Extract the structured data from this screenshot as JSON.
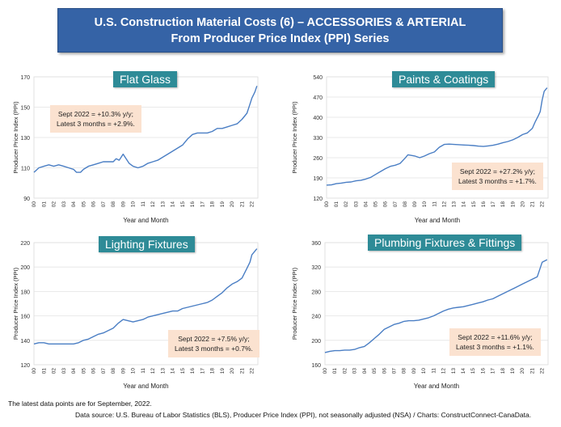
{
  "header": {
    "title_line1": "U.S. Construction Material Costs (6) – ACCESSORIES & ARTERIAL",
    "title_line2": "From Producer Price Index (PPI) Series"
  },
  "footer": {
    "line1": "The latest data points are for September, 2022.",
    "line2": "Data source: U.S. Bureau of Labor Statistics (BLS), Producer Price Index (PPI), not seasonally adjusted (NSA) / Charts: ConstructConnect-CanaData."
  },
  "colors": {
    "line": "#4a7ec4",
    "banner": "#3563a6",
    "panel_title": "#2e8b97",
    "note_bg": "#fbe2d0"
  },
  "chart_data": [
    {
      "type": "line",
      "title": "Flat Glass",
      "xlabel": "Year and Month",
      "ylabel": "Producer Price Index (PPI)",
      "ylim": [
        90,
        170
      ],
      "yticks": [
        90,
        110,
        130,
        150,
        170
      ],
      "x_tick_labels": [
        "00",
        "01",
        "02",
        "03",
        "04",
        "05",
        "06",
        "07",
        "08",
        "09",
        "10",
        "11",
        "12",
        "13",
        "14",
        "15",
        "16",
        "17",
        "18",
        "19",
        "20",
        "21",
        "22"
      ],
      "annotation": [
        "Sept 2022 = +10.3% y/y;",
        "Latest 3 months = +2.9%."
      ],
      "series": [
        {
          "points": [
            [
              0,
              107
            ],
            [
              0.5,
              110
            ],
            [
              1,
              111
            ],
            [
              1.5,
              112
            ],
            [
              2,
              111
            ],
            [
              2.5,
              112
            ],
            [
              3,
              111
            ],
            [
              3.5,
              110
            ],
            [
              4,
              109
            ],
            [
              4.3,
              107
            ],
            [
              4.7,
              107
            ],
            [
              5,
              109
            ],
            [
              5.5,
              111
            ],
            [
              6,
              112
            ],
            [
              6.5,
              113
            ],
            [
              7,
              114
            ],
            [
              7.5,
              114
            ],
            [
              8,
              114
            ],
            [
              8.3,
              116
            ],
            [
              8.6,
              115
            ],
            [
              8.8,
              117
            ],
            [
              9,
              119
            ],
            [
              9.3,
              116
            ],
            [
              9.6,
              113
            ],
            [
              10,
              111
            ],
            [
              10.5,
              110
            ],
            [
              11,
              111
            ],
            [
              11.5,
              113
            ],
            [
              12,
              114
            ],
            [
              12.5,
              115
            ],
            [
              13,
              117
            ],
            [
              13.5,
              119
            ],
            [
              14,
              121
            ],
            [
              14.5,
              123
            ],
            [
              15,
              125
            ],
            [
              15.5,
              129
            ],
            [
              16,
              132
            ],
            [
              16.5,
              133
            ],
            [
              17,
              133
            ],
            [
              17.5,
              133
            ],
            [
              18,
              134
            ],
            [
              18.5,
              136
            ],
            [
              19,
              136
            ],
            [
              19.5,
              137
            ],
            [
              20,
              138
            ],
            [
              20.5,
              139
            ],
            [
              21,
              142
            ],
            [
              21.5,
              146
            ],
            [
              21.8,
              152
            ],
            [
              22,
              156
            ],
            [
              22.3,
              160
            ],
            [
              22.5,
              164
            ]
          ]
        }
      ]
    },
    {
      "type": "line",
      "title": "Paints & Coatings",
      "xlabel": "Year and Month",
      "ylabel": "Producer Price Index (PPI)",
      "ylim": [
        120,
        540
      ],
      "yticks": [
        120,
        190,
        260,
        330,
        400,
        470,
        540
      ],
      "x_tick_labels": [
        "00",
        "01",
        "02",
        "03",
        "04",
        "05",
        "06",
        "07",
        "08",
        "09",
        "10",
        "11",
        "12",
        "13",
        "14",
        "15",
        "16",
        "17",
        "18",
        "19",
        "20",
        "21",
        "22"
      ],
      "annotation": [
        "Sept 2022 = +27.2% y/y;",
        "Latest 3 months = +1.7%."
      ],
      "series": [
        {
          "points": [
            [
              0,
              165
            ],
            [
              0.5,
              166
            ],
            [
              1,
              170
            ],
            [
              1.5,
              172
            ],
            [
              2,
              175
            ],
            [
              2.5,
              176
            ],
            [
              3,
              180
            ],
            [
              3.5,
              182
            ],
            [
              4,
              186
            ],
            [
              4.5,
              192
            ],
            [
              5,
              202
            ],
            [
              5.5,
              212
            ],
            [
              6,
              222
            ],
            [
              6.5,
              230
            ],
            [
              7,
              234
            ],
            [
              7.5,
              240
            ],
            [
              8,
              258
            ],
            [
              8.3,
              270
            ],
            [
              8.6,
              268
            ],
            [
              9,
              266
            ],
            [
              9.5,
              260
            ],
            [
              10,
              266
            ],
            [
              10.5,
              274
            ],
            [
              11,
              280
            ],
            [
              11.5,
              296
            ],
            [
              12,
              306
            ],
            [
              12.5,
              307
            ],
            [
              13,
              306
            ],
            [
              13.5,
              305
            ],
            [
              14,
              304
            ],
            [
              14.5,
              303
            ],
            [
              15,
              302
            ],
            [
              15.5,
              300
            ],
            [
              16,
              299
            ],
            [
              16.5,
              301
            ],
            [
              17,
              303
            ],
            [
              17.5,
              307
            ],
            [
              18,
              312
            ],
            [
              18.5,
              316
            ],
            [
              19,
              322
            ],
            [
              19.5,
              330
            ],
            [
              20,
              340
            ],
            [
              20.5,
              346
            ],
            [
              21,
              362
            ],
            [
              21.3,
              385
            ],
            [
              21.6,
              405
            ],
            [
              21.8,
              420
            ],
            [
              22,
              460
            ],
            [
              22.2,
              490
            ],
            [
              22.5,
              502
            ]
          ]
        }
      ]
    },
    {
      "type": "line",
      "title": "Lighting Fixtures",
      "xlabel": "Year and Month",
      "ylabel": "Producer Price Index (PPI)",
      "ylim": [
        120,
        220
      ],
      "yticks": [
        120,
        140,
        160,
        180,
        200,
        220
      ],
      "x_tick_labels": [
        "00",
        "01",
        "02",
        "03",
        "04",
        "05",
        "06",
        "07",
        "08",
        "09",
        "10",
        "11",
        "12",
        "13",
        "14",
        "15",
        "16",
        "17",
        "18",
        "19",
        "20",
        "21",
        "22"
      ],
      "annotation": [
        "Sept 2022 = +7.5% y/y;",
        "Latest 3 months = +0.7%."
      ],
      "series": [
        {
          "points": [
            [
              0,
              137
            ],
            [
              0.5,
              138
            ],
            [
              1,
              138
            ],
            [
              1.5,
              137
            ],
            [
              2,
              137
            ],
            [
              2.5,
              137
            ],
            [
              3,
              137
            ],
            [
              3.5,
              137
            ],
            [
              4,
              137
            ],
            [
              4.5,
              138
            ],
            [
              5,
              140
            ],
            [
              5.5,
              141
            ],
            [
              6,
              143
            ],
            [
              6.5,
              145
            ],
            [
              7,
              146
            ],
            [
              7.5,
              148
            ],
            [
              8,
              150
            ],
            [
              8.5,
              154
            ],
            [
              9,
              157
            ],
            [
              9.5,
              156
            ],
            [
              10,
              155
            ],
            [
              10.5,
              156
            ],
            [
              11,
              157
            ],
            [
              11.5,
              159
            ],
            [
              12,
              160
            ],
            [
              12.5,
              161
            ],
            [
              13,
              162
            ],
            [
              13.5,
              163
            ],
            [
              14,
              164
            ],
            [
              14.5,
              164
            ],
            [
              15,
              166
            ],
            [
              15.5,
              167
            ],
            [
              16,
              168
            ],
            [
              16.5,
              169
            ],
            [
              17,
              170
            ],
            [
              17.5,
              171
            ],
            [
              18,
              173
            ],
            [
              18.5,
              176
            ],
            [
              19,
              179
            ],
            [
              19.5,
              183
            ],
            [
              20,
              186
            ],
            [
              20.5,
              188
            ],
            [
              21,
              191
            ],
            [
              21.5,
              199
            ],
            [
              21.8,
              204
            ],
            [
              22,
              210
            ],
            [
              22.5,
              215
            ]
          ]
        }
      ]
    },
    {
      "type": "line",
      "title": "Plumbing Fixtures & Fittings",
      "xlabel": "Year and Month",
      "ylabel": "Producer Price Index (PPI)",
      "ylim": [
        160,
        360
      ],
      "yticks": [
        160,
        200,
        240,
        280,
        320,
        360
      ],
      "x_tick_labels": [
        "00",
        "01",
        "02",
        "03",
        "04",
        "05",
        "06",
        "07",
        "08",
        "09",
        "10",
        "11",
        "12",
        "13",
        "14",
        "15",
        "16",
        "17",
        "18",
        "19",
        "20",
        "21",
        "22"
      ],
      "annotation": [
        "Sept 2022 = +11.6% y/y;",
        "Latest 3 months = +1.1%."
      ],
      "series": [
        {
          "points": [
            [
              0,
              180
            ],
            [
              0.5,
              182
            ],
            [
              1,
              183
            ],
            [
              1.5,
              183
            ],
            [
              2,
              184
            ],
            [
              2.5,
              184
            ],
            [
              3,
              185
            ],
            [
              3.5,
              188
            ],
            [
              4,
              190
            ],
            [
              4.5,
              196
            ],
            [
              5,
              203
            ],
            [
              5.5,
              210
            ],
            [
              6,
              218
            ],
            [
              6.5,
              222
            ],
            [
              7,
              226
            ],
            [
              7.5,
              228
            ],
            [
              8,
              231
            ],
            [
              8.5,
              232
            ],
            [
              9,
              232
            ],
            [
              9.5,
              233
            ],
            [
              10,
              235
            ],
            [
              10.5,
              237
            ],
            [
              11,
              240
            ],
            [
              11.5,
              244
            ],
            [
              12,
              248
            ],
            [
              12.5,
              251
            ],
            [
              13,
              253
            ],
            [
              13.5,
              254
            ],
            [
              14,
              255
            ],
            [
              14.5,
              257
            ],
            [
              15,
              259
            ],
            [
              15.5,
              261
            ],
            [
              16,
              263
            ],
            [
              16.5,
              266
            ],
            [
              17,
              268
            ],
            [
              17.5,
              272
            ],
            [
              18,
              276
            ],
            [
              18.5,
              280
            ],
            [
              19,
              284
            ],
            [
              19.5,
              288
            ],
            [
              20,
              292
            ],
            [
              20.5,
              296
            ],
            [
              21,
              300
            ],
            [
              21.5,
              304
            ],
            [
              21.8,
              318
            ],
            [
              22,
              328
            ],
            [
              22.5,
              332
            ]
          ]
        }
      ]
    }
  ]
}
